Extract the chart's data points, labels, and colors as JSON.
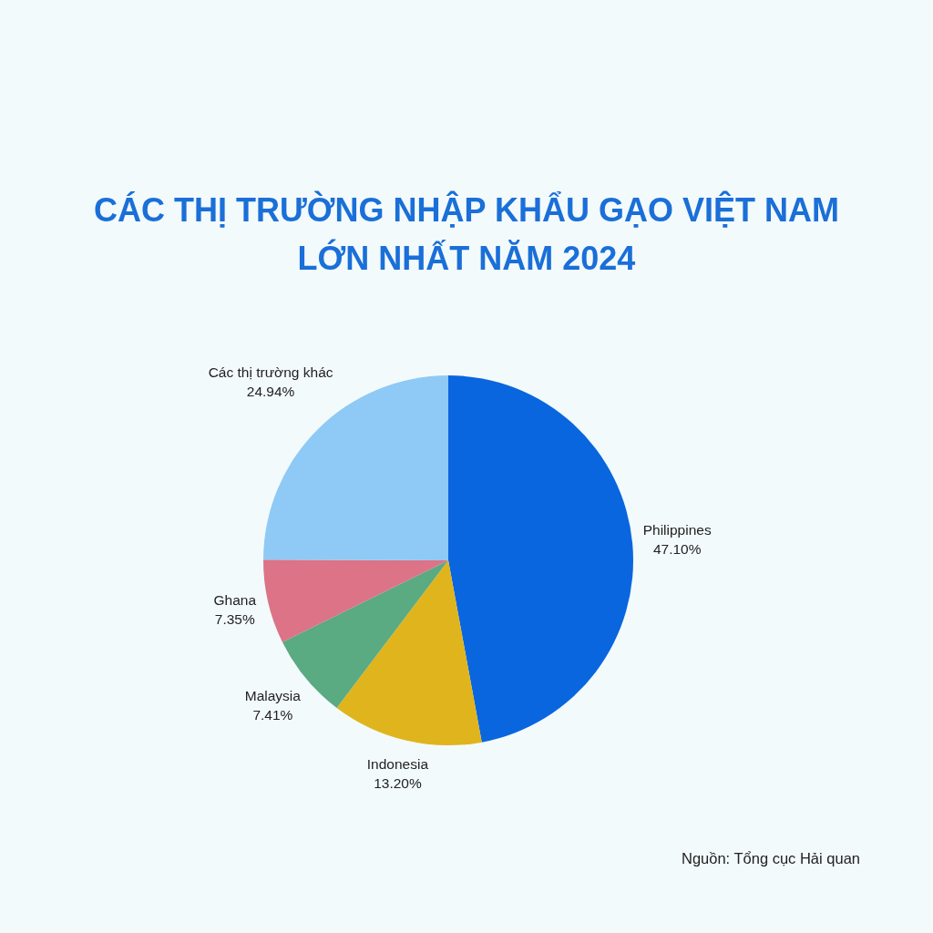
{
  "chart_data": {
    "type": "pie",
    "title": "CÁC THỊ TRƯỜNG NHẬP KHẨU GẠO VIỆT NAM LỚN NHẤT NĂM 2024",
    "categories": [
      "Philippines",
      "Indonesia",
      "Malaysia",
      "Ghana",
      "Các thị trường khác"
    ],
    "values": [
      47.1,
      13.2,
      7.41,
      7.35,
      24.94
    ],
    "colors": [
      "#0a66de",
      "#e0b41c",
      "#5aaa82",
      "#dc7386",
      "#8ecaf5"
    ],
    "value_labels": [
      "47.10%",
      "13.20%",
      "7.41%",
      "7.35%",
      "24.94%"
    ],
    "annotations": [
      "Nguồn: Tổng cục Hải quan"
    ]
  }
}
